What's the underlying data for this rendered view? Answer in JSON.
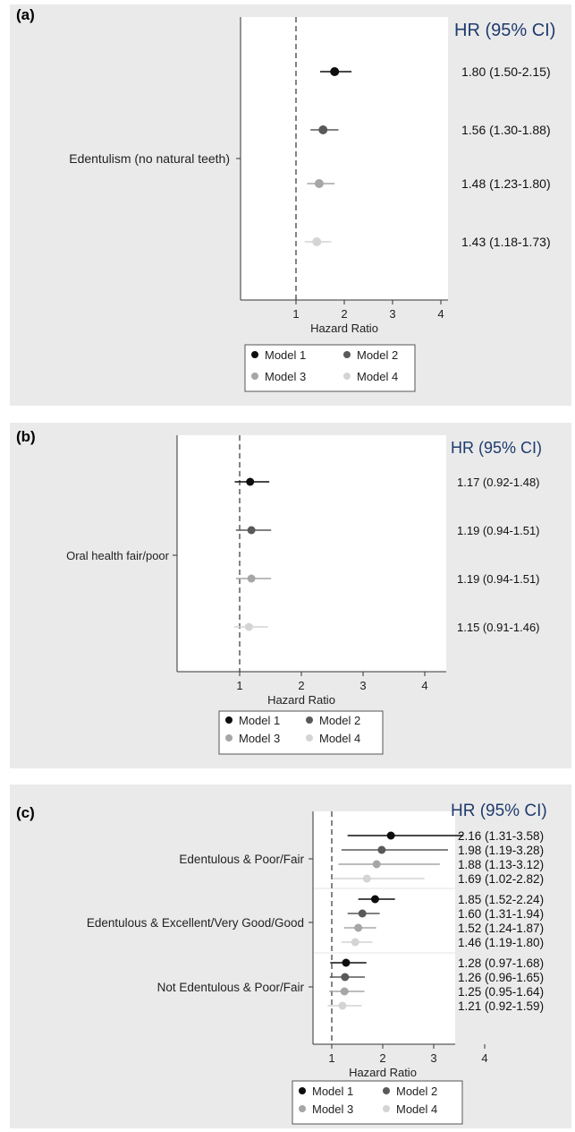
{
  "chart_data": [
    {
      "panel": "(a)",
      "type": "scatter",
      "subtype": "forest",
      "header": "HR (95% CI)",
      "xlabel": "Hazard Ratio",
      "xticks": [
        1,
        2,
        3,
        4
      ],
      "xlim": [
        0,
        4.2
      ],
      "reference_line": 1,
      "legend": {
        "placement": "bottom",
        "entries": [
          "Model 1",
          "Model 2",
          "Model 3",
          "Model 4"
        ]
      },
      "series_colors": [
        "#0d0d0d",
        "#595959",
        "#a6a6a6",
        "#d4d4d4"
      ],
      "groups": [
        {
          "label": "Edentulism (no natural teeth)",
          "rows": [
            {
              "model": "Model 1",
              "hr": 1.8,
              "lo": 1.5,
              "hi": 2.15,
              "text": "1.80 (1.50-2.15)"
            },
            {
              "model": "Model 2",
              "hr": 1.56,
              "lo": 1.3,
              "hi": 1.88,
              "text": "1.56 (1.30-1.88)"
            },
            {
              "model": "Model 3",
              "hr": 1.48,
              "lo": 1.23,
              "hi": 1.8,
              "text": "1.48 (1.23-1.80)"
            },
            {
              "model": "Model 4",
              "hr": 1.43,
              "lo": 1.18,
              "hi": 1.73,
              "text": "1.43 (1.18-1.73)"
            }
          ]
        }
      ]
    },
    {
      "panel": "(b)",
      "type": "scatter",
      "subtype": "forest",
      "header": "HR (95% CI)",
      "xlabel": "Hazard Ratio",
      "xticks": [
        1,
        2,
        3,
        4
      ],
      "xlim": [
        0,
        4.2
      ],
      "reference_line": 1,
      "legend": {
        "placement": "bottom",
        "entries": [
          "Model 1",
          "Model 2",
          "Model 3",
          "Model 4"
        ]
      },
      "series_colors": [
        "#0d0d0d",
        "#595959",
        "#a6a6a6",
        "#d4d4d4"
      ],
      "groups": [
        {
          "label": "Oral health fair/poor",
          "rows": [
            {
              "model": "Model 1",
              "hr": 1.17,
              "lo": 0.92,
              "hi": 1.48,
              "text": "1.17 (0.92-1.48)"
            },
            {
              "model": "Model 2",
              "hr": 1.19,
              "lo": 0.94,
              "hi": 1.51,
              "text": "1.19 (0.94-1.51)"
            },
            {
              "model": "Model 3",
              "hr": 1.19,
              "lo": 0.94,
              "hi": 1.51,
              "text": "1.19 (0.94-1.51)"
            },
            {
              "model": "Model 4",
              "hr": 1.15,
              "lo": 0.91,
              "hi": 1.46,
              "text": "1.15 (0.91-1.46)"
            }
          ]
        }
      ]
    },
    {
      "panel": "(c)",
      "type": "scatter",
      "subtype": "forest",
      "header": "HR (95% CI)",
      "xlabel": "Hazard Ratio",
      "xticks": [
        1,
        2,
        3,
        4
      ],
      "xlim": [
        0,
        4.2
      ],
      "reference_line": 1,
      "legend": {
        "placement": "bottom",
        "entries": [
          "Model 1",
          "Model 2",
          "Model 3",
          "Model 4"
        ]
      },
      "series_colors": [
        "#0d0d0d",
        "#595959",
        "#a6a6a6",
        "#d4d4d4"
      ],
      "groups": [
        {
          "label": "Edentulous & Poor/Fair",
          "rows": [
            {
              "model": "Model 1",
              "hr": 2.16,
              "lo": 1.31,
              "hi": 3.58,
              "text": "2.16 (1.31-3.58)"
            },
            {
              "model": "Model 2",
              "hr": 1.98,
              "lo": 1.19,
              "hi": 3.28,
              "text": "1.98 (1.19-3.28)"
            },
            {
              "model": "Model 3",
              "hr": 1.88,
              "lo": 1.13,
              "hi": 3.12,
              "text": "1.88 (1.13-3.12)"
            },
            {
              "model": "Model 4",
              "hr": 1.69,
              "lo": 1.02,
              "hi": 2.82,
              "text": "1.69 (1.02-2.82)"
            }
          ]
        },
        {
          "label": "Edentulous & Excellent/Very Good/Good",
          "rows": [
            {
              "model": "Model 1",
              "hr": 1.85,
              "lo": 1.52,
              "hi": 2.24,
              "text": "1.85 (1.52-2.24)"
            },
            {
              "model": "Model 2",
              "hr": 1.6,
              "lo": 1.31,
              "hi": 1.94,
              "text": "1.60 (1.31-1.94)"
            },
            {
              "model": "Model 3",
              "hr": 1.52,
              "lo": 1.24,
              "hi": 1.87,
              "text": "1.52 (1.24-1.87)"
            },
            {
              "model": "Model 4",
              "hr": 1.46,
              "lo": 1.19,
              "hi": 1.8,
              "text": "1.46 (1.19-1.80)"
            }
          ]
        },
        {
          "label": "Not Edentulous & Poor/Fair",
          "rows": [
            {
              "model": "Model 1",
              "hr": 1.28,
              "lo": 0.97,
              "hi": 1.68,
              "text": "1.28 (0.97-1.68)"
            },
            {
              "model": "Model 2",
              "hr": 1.26,
              "lo": 0.96,
              "hi": 1.65,
              "text": "1.26 (0.96-1.65)"
            },
            {
              "model": "Model 3",
              "hr": 1.25,
              "lo": 0.95,
              "hi": 1.64,
              "text": "1.25 (0.95-1.64)"
            },
            {
              "model": "Model 4",
              "hr": 1.21,
              "lo": 0.92,
              "hi": 1.59,
              "text": "1.21 (0.92-1.59)"
            }
          ]
        }
      ]
    }
  ]
}
